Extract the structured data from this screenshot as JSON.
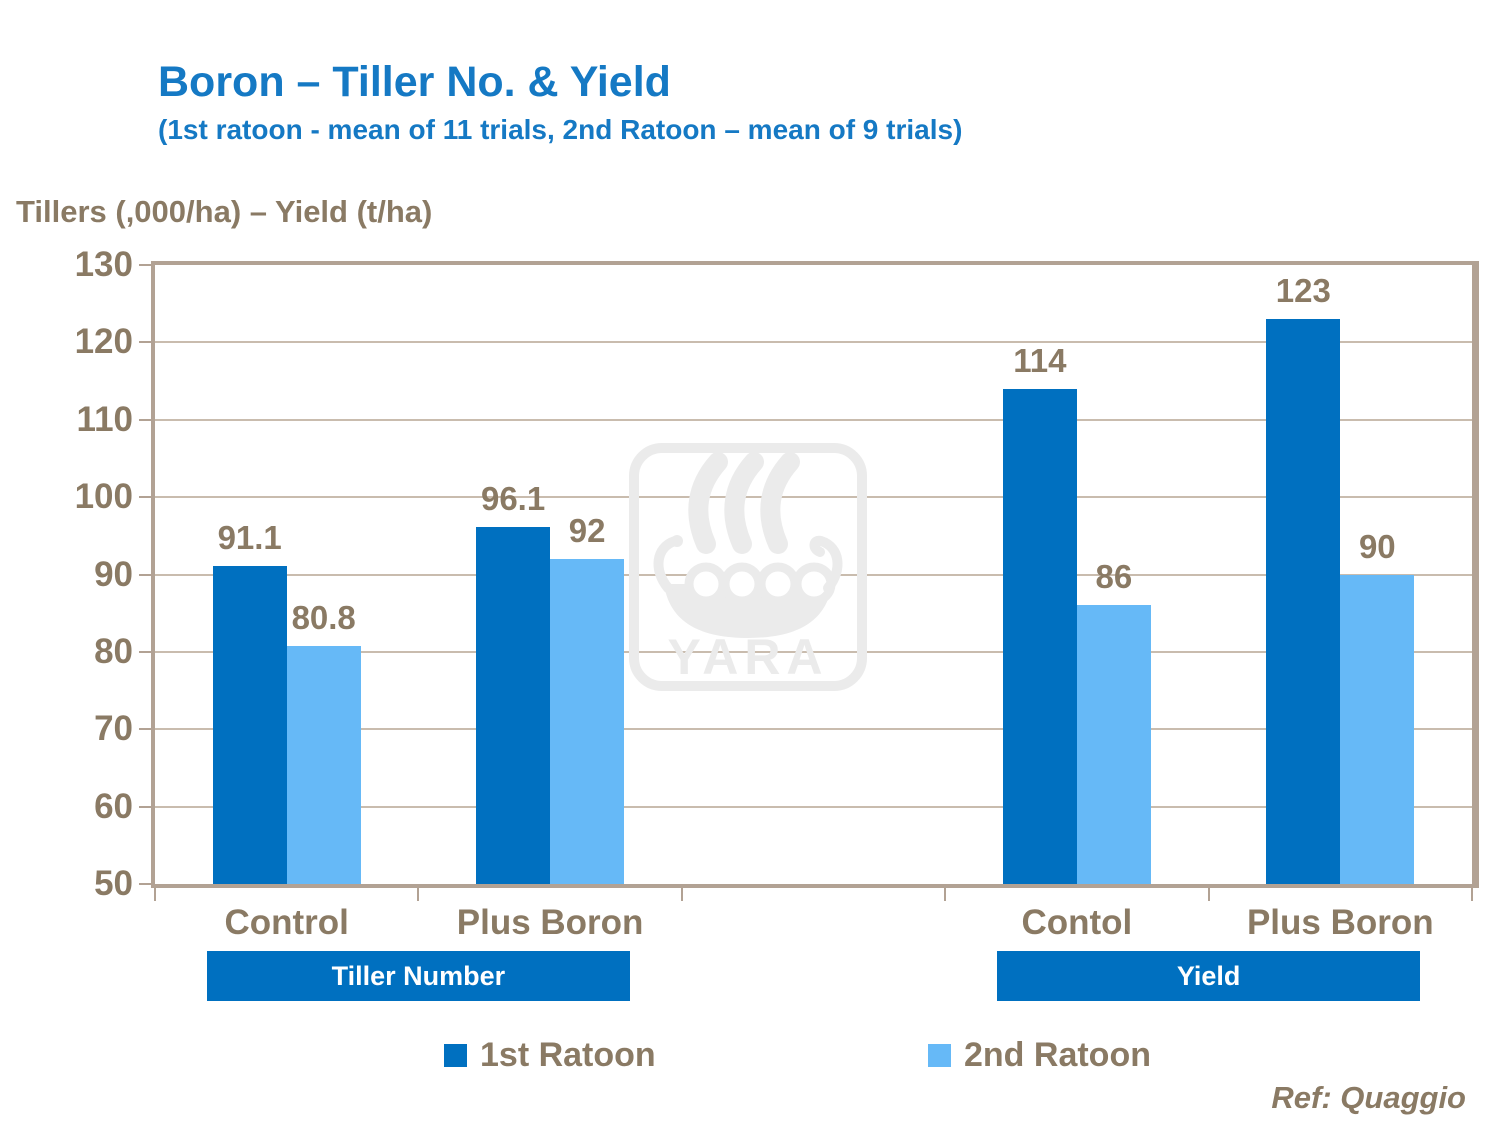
{
  "header": {
    "title": "Boron – Tiller No. & Yield",
    "subtitle": "(1st ratoon - mean of 11 trials, 2nd Ratoon – mean of 9 trials)"
  },
  "axis_title": "Tillers (,000/ha) – Yield (t/ha)",
  "footer": {
    "ref": "Ref: Quaggio"
  },
  "watermark": {
    "text": "YARA"
  },
  "colors": {
    "title_blue": "#1579C4",
    "series1": "#0070C0",
    "series2": "#66B9F7",
    "text_brown": "#8A7A64",
    "axis_line": "#B2A294",
    "gridline": "#C9BCAE",
    "band_bg": "#0070C0",
    "band_text": "#FFFFFF"
  },
  "legend": {
    "items": [
      {
        "label": "1st Ratoon",
        "color": "#0070C0"
      },
      {
        "label": "2nd Ratoon",
        "color": "#66B9F7"
      }
    ]
  },
  "chart_data": {
    "type": "bar",
    "title": "Boron – Tiller No. & Yield",
    "subtitle": "(1st ratoon - mean of 11 trials, 2nd Ratoon – mean of 9 trials)",
    "ylabel": "Tillers (,000/ha) – Yield (t/ha)",
    "ylim": [
      50,
      130
    ],
    "ytick_step": 10,
    "yticks": [
      50,
      60,
      70,
      80,
      90,
      100,
      110,
      120,
      130
    ],
    "grid": true,
    "legend_position": "bottom",
    "categories": [
      "Control",
      "Plus Boron",
      "",
      "Contol",
      "Plus Boron"
    ],
    "series": [
      {
        "name": "1st Ratoon",
        "color": "#0070C0",
        "values": [
          91.1,
          96.1,
          null,
          114,
          123
        ]
      },
      {
        "name": "2nd Ratoon",
        "color": "#66B9F7",
        "values": [
          80.8,
          92,
          null,
          86,
          90
        ]
      }
    ],
    "group_bands": [
      {
        "label": "Tiller Number",
        "from_slot": 0,
        "to_slot": 1
      },
      {
        "label": "Yield",
        "from_slot": 3,
        "to_slot": 4
      }
    ]
  }
}
